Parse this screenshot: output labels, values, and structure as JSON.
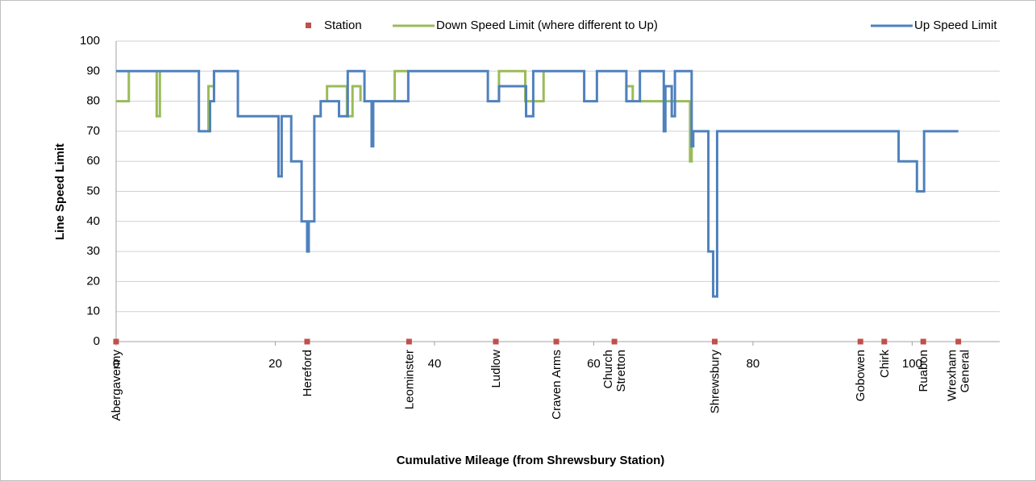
{
  "chart_data": {
    "type": "line",
    "step": "after",
    "xlabel": "Cumulative Mileage (from Shrewsbury Station)",
    "ylabel": "Line Speed Limit",
    "xlim": [
      0,
      111
    ],
    "ylim": [
      0,
      100
    ],
    "xticks": [
      0,
      20,
      40,
      60,
      80,
      100
    ],
    "yticks": [
      0,
      10,
      20,
      30,
      40,
      50,
      60,
      70,
      80,
      90,
      100
    ],
    "grid": true,
    "legend": "top",
    "stations": {
      "name": "Station",
      "color": "#c0504d",
      "x": [
        0,
        24,
        36.8,
        47.7,
        55.3,
        62.6,
        75.2,
        93.5,
        96.5,
        101.4,
        105.8
      ],
      "values": [
        0,
        0,
        0,
        0,
        0,
        0,
        0,
        0,
        0,
        0,
        0
      ],
      "labels": [
        [
          "Abergavenny"
        ],
        [
          "Hereford"
        ],
        [
          "Leominster"
        ],
        [
          "Ludlow"
        ],
        [
          "Craven Arms"
        ],
        [
          "Church",
          "Stretton"
        ],
        [
          "Shrewsbury"
        ],
        [
          "Gobowen"
        ],
        [
          "Chirk"
        ],
        [
          "Ruabon"
        ],
        [
          "Wrexham",
          "General"
        ]
      ]
    },
    "series": [
      {
        "name": "Down Speed Limit (where different to Up)",
        "color": "#9bbb59",
        "x": [
          0,
          1.6,
          null,
          5.1,
          5.1,
          5.5,
          null,
          11.6,
          11.6,
          12.3,
          null,
          26.5,
          26.5,
          29.0,
          29.7,
          30.7,
          null,
          35.0,
          35.0,
          36.7,
          null,
          48.1,
          48.1,
          51.4,
          53.7,
          null,
          64.1,
          64.1,
          64.9,
          null,
          65.8,
          72.1,
          72.3
        ],
        "values": [
          80,
          90,
          null,
          90,
          75,
          90,
          null,
          70,
          85,
          90,
          null,
          80,
          85,
          75,
          85,
          80,
          null,
          80,
          90,
          90,
          null,
          80,
          90,
          80,
          90,
          null,
          80,
          85,
          80,
          null,
          80,
          60,
          70
        ]
      },
      {
        "name": "Up Speed Limit",
        "color": "#4f81bd",
        "x": [
          0,
          10.4,
          11.8,
          12.3,
          15.3,
          20.4,
          20.8,
          22.0,
          23.3,
          24.0,
          24.2,
          24.9,
          25.7,
          28.0,
          29.1,
          31.2,
          32.1,
          32.3,
          36.7,
          46.7,
          48.1,
          51.5,
          52.4,
          58.8,
          60.4,
          64.1,
          65.8,
          68.8,
          69.0,
          69.8,
          70.2,
          72.3,
          72.5,
          74.4,
          75.0,
          75.5,
          98.3,
          100.6,
          101.5,
          105.8
        ],
        "values": [
          90,
          70,
          80,
          90,
          75,
          55,
          75,
          60,
          40,
          30,
          40,
          75,
          80,
          75,
          90,
          80,
          65,
          80,
          90,
          80,
          85,
          75,
          90,
          80,
          90,
          80,
          90,
          70,
          85,
          75,
          90,
          65,
          70,
          30,
          15,
          70,
          60,
          50,
          70,
          70
        ]
      }
    ]
  }
}
